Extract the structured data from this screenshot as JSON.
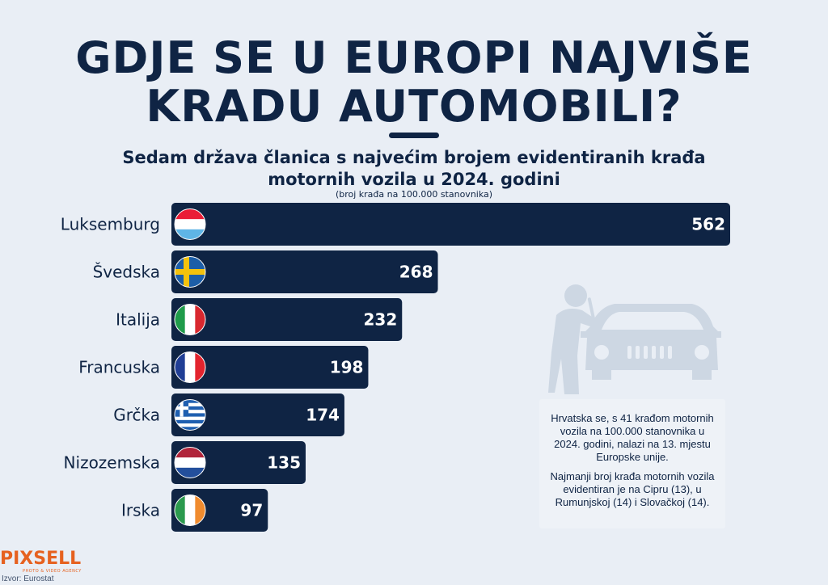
{
  "header": {
    "title_line1": "GDJE SE U EUROPI NAJVIŠE",
    "title_line2": "KRADU AUTOMOBILI?",
    "subtitle_line1": "Sedam država članica s najvećim brojem evidentiranih krađa",
    "subtitle_line2": "motornih vozila u 2024. godini",
    "unit_note": "(broj krađa na 100.000 stanovnika)"
  },
  "chart_data": {
    "type": "bar",
    "orientation": "horizontal",
    "categories": [
      "Luksemburg",
      "Švedska",
      "Italija",
      "Francuska",
      "Grčka",
      "Nizozemska",
      "Irska"
    ],
    "values": [
      562,
      268,
      232,
      198,
      174,
      135,
      97
    ],
    "flags": [
      "luxembourg",
      "sweden",
      "italy",
      "france",
      "greece",
      "netherlands",
      "ireland"
    ],
    "bar_color": "#0f2444",
    "value_label_color": "#ffffff",
    "grid": false,
    "legend": "none"
  },
  "note": {
    "paragraph1": "Hrvatska se, s 41 krađom motornih vozila na 100.000 stanovnika u 2024. godini, nalazi na 13. mjestu Europske unije.",
    "paragraph2": "Najmanji broj krađa motornih vozila evidentiran je na Cipru (13), u Rumunjskoj (14) i Slovačkoj (14)."
  },
  "footer": {
    "logo_text": "PIXSELL",
    "logo_tagline": "PHOTO & VIDEO AGENCY",
    "source": "Izvor: Eurostat"
  },
  "colors": {
    "background": "#e9eef5",
    "navy": "#0f2444",
    "logo_orange": "#e6611f",
    "illustration": "#cdd7e3"
  },
  "icons": {
    "illustration": "car-thief-icon"
  }
}
